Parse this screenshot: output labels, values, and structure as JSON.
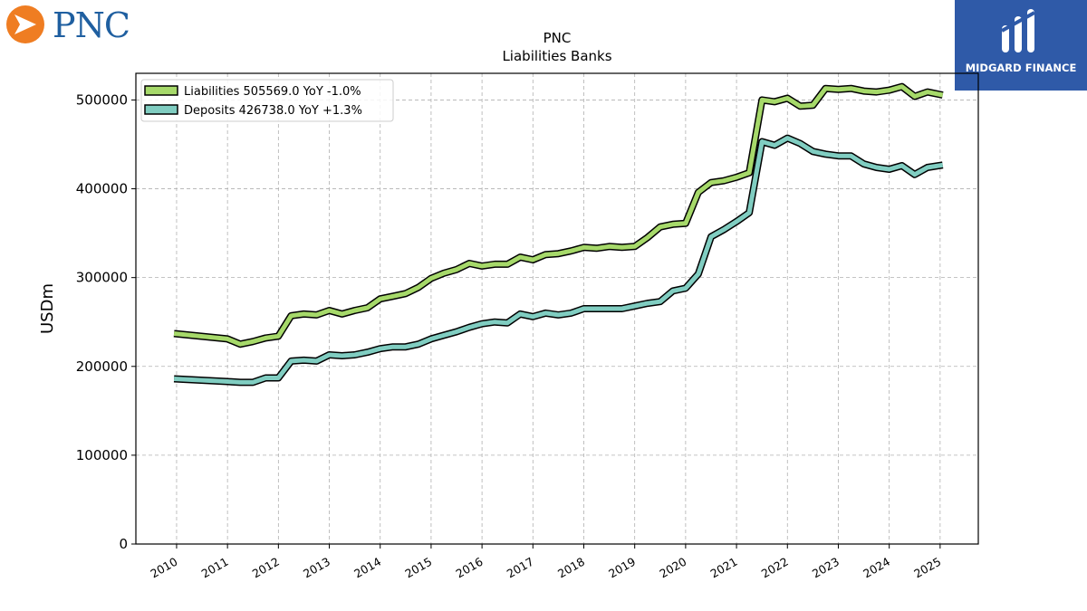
{
  "logos": {
    "left_text": "PNC",
    "right_text": "MIDGARD FINANCE"
  },
  "chart_data": {
    "type": "line",
    "title": "PNC",
    "subtitle": "Liabilities Banks",
    "ylabel": "USDm",
    "xlabel": "",
    "ylim": [
      0,
      530000
    ],
    "xlim": [
      2009.2,
      2025.75
    ],
    "yticks": [
      0,
      100000,
      200000,
      300000,
      400000,
      500000
    ],
    "ytick_labels": [
      "0",
      "100000",
      "200000",
      "300000",
      "400000",
      "500000"
    ],
    "xticks": [
      2010,
      2011,
      2012,
      2013,
      2014,
      2015,
      2016,
      2017,
      2018,
      2019,
      2020,
      2021,
      2022,
      2023,
      2024,
      2025
    ],
    "xtick_labels": [
      "2010",
      "2011",
      "2012",
      "2013",
      "2014",
      "2015",
      "2016",
      "2017",
      "2018",
      "2019",
      "2020",
      "2021",
      "2022",
      "2023",
      "2024",
      "2025"
    ],
    "grid": true,
    "legend_position": "top-left",
    "legend_entries": [
      "Liabilities  505569.0 YoY -1.0%",
      "Deposits  426738.0 YoY +1.3%"
    ],
    "series": [
      {
        "name": "Liabilities",
        "color": "#a6d96a",
        "x": [
          2009.95,
          2011.0,
          2011.25,
          2011.5,
          2011.75,
          2012.0,
          2012.25,
          2012.5,
          2012.75,
          2013.0,
          2013.25,
          2013.5,
          2013.75,
          2014.0,
          2014.25,
          2014.5,
          2014.75,
          2015.0,
          2015.25,
          2015.5,
          2015.75,
          2016.0,
          2016.25,
          2016.5,
          2016.75,
          2017.0,
          2017.25,
          2017.5,
          2017.75,
          2018.0,
          2018.25,
          2018.5,
          2018.75,
          2019.0,
          2019.25,
          2019.5,
          2019.75,
          2020.0,
          2020.25,
          2020.5,
          2020.75,
          2021.0,
          2021.25,
          2021.5,
          2021.75,
          2022.0,
          2022.25,
          2022.5,
          2022.75,
          2023.0,
          2023.25,
          2023.5,
          2023.75,
          2024.0,
          2024.25,
          2024.5,
          2024.75,
          2025.05
        ],
        "values": [
          237000,
          231000,
          225000,
          228000,
          232000,
          234000,
          257000,
          259000,
          258000,
          263000,
          259000,
          263000,
          266000,
          276000,
          279000,
          282000,
          289000,
          299000,
          305000,
          309000,
          316000,
          313000,
          315000,
          315000,
          323000,
          320000,
          326000,
          327000,
          330000,
          334000,
          333000,
          335000,
          334000,
          335000,
          345000,
          357000,
          360000,
          361000,
          396000,
          407000,
          409000,
          413000,
          418000,
          500000,
          498000,
          502000,
          493000,
          494000,
          513000,
          512000,
          513000,
          510000,
          509000,
          511000,
          515000,
          504000,
          509000,
          505569
        ]
      },
      {
        "name": "Deposits",
        "color": "#80cdc1",
        "x": [
          2009.95,
          2011.0,
          2011.25,
          2011.5,
          2011.75,
          2012.0,
          2012.25,
          2012.5,
          2012.75,
          2013.0,
          2013.25,
          2013.5,
          2013.75,
          2014.0,
          2014.25,
          2014.5,
          2014.75,
          2015.0,
          2015.25,
          2015.5,
          2015.75,
          2016.0,
          2016.25,
          2016.5,
          2016.75,
          2017.0,
          2017.25,
          2017.5,
          2017.75,
          2018.0,
          2018.25,
          2018.5,
          2018.75,
          2019.0,
          2019.25,
          2019.5,
          2019.75,
          2020.0,
          2020.25,
          2020.5,
          2020.75,
          2021.0,
          2021.25,
          2021.5,
          2021.75,
          2022.0,
          2022.25,
          2022.5,
          2022.75,
          2023.0,
          2023.25,
          2023.5,
          2023.75,
          2024.0,
          2024.25,
          2024.5,
          2024.75,
          2025.05
        ],
        "values": [
          186000,
          183000,
          182000,
          182000,
          187000,
          187000,
          206000,
          207000,
          206000,
          213000,
          212000,
          213000,
          216000,
          220000,
          222000,
          222000,
          225000,
          231000,
          235000,
          239000,
          244000,
          248000,
          250000,
          249000,
          259000,
          256000,
          260000,
          258000,
          260000,
          265000,
          265000,
          265000,
          265000,
          268000,
          271000,
          273000,
          285000,
          288000,
          304000,
          346000,
          354000,
          363000,
          373000,
          453000,
          449000,
          457000,
          451000,
          442000,
          439000,
          437000,
          437000,
          428000,
          424000,
          422000,
          426000,
          416000,
          424000,
          426738
        ]
      }
    ]
  }
}
